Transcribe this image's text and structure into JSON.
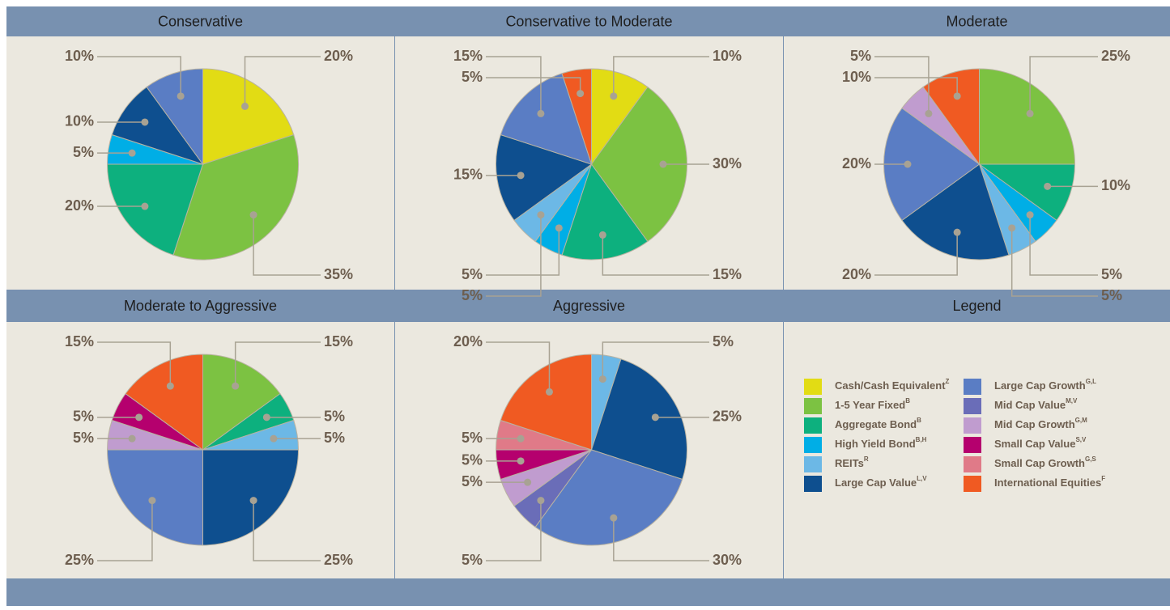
{
  "chart_data": [
    {
      "type": "pie",
      "title": "Conservative",
      "categories": [
        "Cash/Cash Equivalent",
        "1-5 Year Fixed",
        "Aggregate Bond",
        "High Yield Bond",
        "Large Cap Value",
        "Large Cap Growth"
      ],
      "values": [
        20,
        35,
        20,
        5,
        10,
        10
      ],
      "value_labels": [
        "20%",
        "35%",
        "20%",
        "5%",
        "10%",
        "10%"
      ]
    },
    {
      "type": "pie",
      "title": "Conservative to Moderate",
      "categories": [
        "Cash/Cash Equivalent",
        "1-5 Year Fixed",
        "Aggregate Bond",
        "High Yield Bond",
        "REITs",
        "Large Cap Value",
        "Large Cap Growth",
        "International Equities"
      ],
      "values": [
        10,
        30,
        15,
        5,
        5,
        15,
        15,
        5
      ],
      "value_labels": [
        "10%",
        "30%",
        "15%",
        "5%",
        "5%",
        "15%",
        "15%",
        "5%"
      ]
    },
    {
      "type": "pie",
      "title": "Moderate",
      "categories": [
        "1-5 Year Fixed",
        "Aggregate Bond",
        "High Yield Bond",
        "REITs",
        "Large Cap Value",
        "Large Cap Growth",
        "Mid Cap Growth",
        "International Equities"
      ],
      "values": [
        25,
        10,
        5,
        5,
        20,
        20,
        5,
        10
      ],
      "value_labels": [
        "25%",
        "10%",
        "5%",
        "5%",
        "20%",
        "20%",
        "5%",
        "10%"
      ]
    },
    {
      "type": "pie",
      "title": "Moderate to Aggressive",
      "categories": [
        "1-5 Year Fixed",
        "Aggregate Bond",
        "REITs",
        "Large Cap Value",
        "Large Cap Growth",
        "Mid Cap Growth",
        "Small Cap Value",
        "International Equities"
      ],
      "values": [
        15,
        5,
        5,
        25,
        25,
        5,
        5,
        15
      ],
      "value_labels": [
        "15%",
        "5%",
        "5%",
        "25%",
        "25%",
        "5%",
        "5%",
        "15%"
      ]
    },
    {
      "type": "pie",
      "title": "Aggressive",
      "categories": [
        "REITs",
        "Large Cap Value",
        "Large Cap Growth",
        "Mid Cap Value",
        "Mid Cap Growth",
        "Small Cap Value",
        "Small Cap Growth",
        "International Equities"
      ],
      "values": [
        5,
        25,
        30,
        5,
        5,
        5,
        5,
        20
      ],
      "value_labels": [
        "5%",
        "25%",
        "30%",
        "5%",
        "5%",
        "5%",
        "5%",
        "20%"
      ]
    }
  ],
  "legend": {
    "title": "Legend",
    "items": [
      {
        "name": "Cash/Cash Equivalent",
        "note": "Z",
        "color": "#e2dc14"
      },
      {
        "name": "1-5 Year Fixed",
        "note": "B",
        "color": "#7cc242"
      },
      {
        "name": "Aggregate Bond",
        "note": "B",
        "color": "#0db07e"
      },
      {
        "name": "High Yield Bond",
        "note": "B,H",
        "color": "#00aee6"
      },
      {
        "name": "REITs",
        "note": "R",
        "color": "#6cb8e6"
      },
      {
        "name": "Large Cap Value",
        "note": "L,V",
        "color": "#0e4f8f"
      },
      {
        "name": "Large Cap Growth",
        "note": "G,L",
        "color": "#5a7dc4"
      },
      {
        "name": "Mid Cap Value",
        "note": "M,V",
        "color": "#6a6db8"
      },
      {
        "name": "Mid Cap Growth",
        "note": "G,M",
        "color": "#c09ccf"
      },
      {
        "name": "Small Cap Value",
        "note": "S,V",
        "color": "#b5006e"
      },
      {
        "name": "Small Cap Growth",
        "note": "G,S",
        "color": "#e07a88"
      },
      {
        "name": "International Equities",
        "note": "F",
        "color": "#f05a22"
      }
    ]
  }
}
